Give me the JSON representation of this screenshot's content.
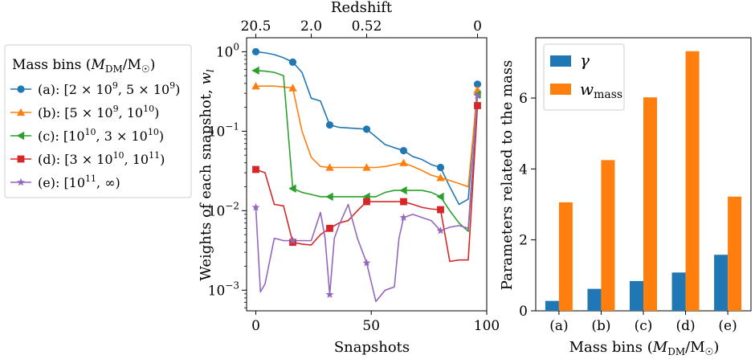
{
  "chart_data": [
    {
      "type": "line",
      "title": "",
      "xlabel": "Snapshots",
      "ylabel": "Weights of each snapshot, w_l",
      "ylabel_parts": {
        "main": "Weights of each snapshot, ",
        "var": "w",
        "sub": "l"
      },
      "xlim": [
        -4,
        100
      ],
      "ylim": [
        0.00055,
        1.5
      ],
      "yscale": "log",
      "xticks": [
        0,
        50,
        100
      ],
      "yticks": [
        {
          "value": 1,
          "base": "10",
          "exp": "0"
        },
        {
          "value": 0.1,
          "base": "10",
          "exp": "−1"
        },
        {
          "value": 0.01,
          "base": "10",
          "exp": "−2"
        },
        {
          "value": 0.001,
          "base": "10",
          "exp": "−3"
        }
      ],
      "top_axis": {
        "label": "Redshift",
        "ticks": [
          {
            "label": "20.5",
            "snapshot": 0
          },
          {
            "label": "2.0",
            "snapshot": 24
          },
          {
            "label": "0.52",
            "snapshot": 48
          },
          {
            "label": "0",
            "snapshot": 96
          }
        ]
      },
      "legend": {
        "title_parts": {
          "pre": "Mass bins (",
          "var": "M",
          "sub": "DM",
          "mid": "/M",
          "sun": "☉",
          "post": ")"
        },
        "position": "outside-left",
        "entries": [
          {
            "tag": "(a): ",
            "parts": [
              "[2 × 10",
              "9",
              ", 5 × 10",
              "9",
              ")"
            ]
          },
          {
            "tag": "(b): ",
            "parts": [
              "[5 × 10",
              "9",
              ", 10",
              "10",
              ")"
            ]
          },
          {
            "tag": "(c): ",
            "parts": [
              "[10",
              "10",
              ", 3 × 10",
              "10",
              ")"
            ]
          },
          {
            "tag": "(d): ",
            "parts": [
              "[3 × 10",
              "10",
              ", 10",
              "11",
              ")"
            ]
          },
          {
            "tag": "(e): ",
            "parts": [
              "[10",
              "11",
              ", ∞)",
              "",
              ""
            ]
          }
        ]
      },
      "series": [
        {
          "color": "#1f77b4",
          "marker": "circle",
          "x": [
            0,
            4,
            8,
            12,
            16,
            20,
            24,
            28,
            32,
            36,
            40,
            44,
            48,
            52,
            56,
            60,
            64,
            68,
            72,
            76,
            80,
            84,
            88,
            92,
            96
          ],
          "y": [
            1.0,
            0.97,
            0.92,
            0.84,
            0.74,
            0.55,
            0.26,
            0.24,
            0.12,
            0.112,
            0.11,
            0.108,
            0.106,
            0.085,
            0.068,
            0.062,
            0.057,
            0.048,
            0.044,
            0.038,
            0.035,
            0.02,
            0.012,
            0.014,
            0.39
          ],
          "markers_at": [
            0,
            16,
            32,
            48,
            64,
            80,
            96
          ]
        },
        {
          "color": "#ff7f0e",
          "marker": "triangle-up",
          "x": [
            0,
            4,
            8,
            12,
            16,
            20,
            24,
            28,
            32,
            36,
            40,
            44,
            48,
            52,
            56,
            60,
            64,
            68,
            72,
            76,
            80,
            84,
            88,
            92,
            96
          ],
          "y": [
            0.37,
            0.37,
            0.37,
            0.36,
            0.35,
            0.1,
            0.047,
            0.036,
            0.035,
            0.035,
            0.035,
            0.035,
            0.035,
            0.035,
            0.036,
            0.038,
            0.04,
            0.036,
            0.032,
            0.028,
            0.026,
            0.024,
            0.022,
            0.02,
            0.33
          ],
          "markers_at": [
            0,
            16,
            32,
            48,
            64,
            80,
            96
          ]
        },
        {
          "color": "#2ca02c",
          "marker": "triangle-left",
          "x": [
            0,
            4,
            8,
            12,
            16,
            20,
            24,
            28,
            32,
            36,
            40,
            44,
            48,
            52,
            56,
            60,
            64,
            68,
            72,
            76,
            80,
            84,
            88,
            92,
            96
          ],
          "y": [
            0.58,
            0.57,
            0.55,
            0.5,
            0.019,
            0.017,
            0.016,
            0.015,
            0.015,
            0.015,
            0.015,
            0.015,
            0.015,
            0.015,
            0.017,
            0.018,
            0.018,
            0.018,
            0.018,
            0.017,
            0.015,
            0.01,
            0.007,
            0.0055,
            0.29
          ],
          "markers_at": [
            0,
            16,
            32,
            48,
            64,
            80,
            96
          ]
        },
        {
          "color": "#d62728",
          "marker": "square",
          "x": [
            0,
            4,
            8,
            12,
            16,
            20,
            24,
            28,
            32,
            36,
            40,
            44,
            48,
            52,
            56,
            60,
            64,
            68,
            72,
            76,
            80,
            84,
            88,
            92,
            96
          ],
          "y": [
            0.033,
            0.03,
            0.012,
            0.0115,
            0.004,
            0.0038,
            0.0037,
            0.005,
            0.006,
            0.007,
            0.0075,
            0.01,
            0.013,
            0.013,
            0.013,
            0.013,
            0.013,
            0.012,
            0.011,
            0.0105,
            0.0103,
            0.0023,
            0.0024,
            0.0024,
            0.21
          ],
          "markers_at": [
            0,
            16,
            32,
            48,
            64,
            80,
            96
          ]
        },
        {
          "color": "#9467bd",
          "marker": "star",
          "x": [
            0,
            2,
            4,
            8,
            12,
            16,
            20,
            24,
            28,
            30,
            32,
            34,
            36,
            40,
            44,
            48,
            52,
            56,
            60,
            62,
            64,
            68,
            72,
            76,
            80,
            84,
            88,
            92,
            96
          ],
          "y": [
            0.011,
            0.00095,
            0.0012,
            0.0045,
            0.0042,
            0.0042,
            0.0042,
            0.0042,
            0.0095,
            0.0045,
            0.00088,
            0.0045,
            0.0065,
            0.012,
            0.0045,
            0.0022,
            0.00072,
            0.001,
            0.0011,
            0.0045,
            0.0082,
            0.009,
            0.0082,
            0.0075,
            0.0056,
            0.0062,
            0.0065,
            0.006,
            0.28
          ],
          "markers_at": [
            0,
            16,
            32,
            48,
            64,
            80,
            96
          ]
        }
      ]
    },
    {
      "type": "bar",
      "title": "",
      "xlabel_parts": {
        "pre": "Mass bins (",
        "var": "M",
        "sub": "DM",
        "mid": "/M",
        "sun": "☉",
        "post": ")"
      },
      "ylabel": "Parameters related to the mass",
      "categories": [
        "(a)",
        "(b)",
        "(c)",
        "(d)",
        "(e)"
      ],
      "ylim": [
        0,
        7.7
      ],
      "yticks": [
        0,
        2,
        4,
        6
      ],
      "legend_position": "top-left",
      "series": [
        {
          "name": "γ",
          "color": "#1f77b4",
          "values": [
            0.28,
            0.62,
            0.84,
            1.08,
            1.58
          ]
        },
        {
          "name": "w_mass",
          "name_parts": {
            "var": "w",
            "sub": "mass"
          },
          "color": "#ff7f0e",
          "values": [
            3.06,
            4.25,
            6.02,
            7.32,
            3.22
          ]
        }
      ]
    }
  ]
}
